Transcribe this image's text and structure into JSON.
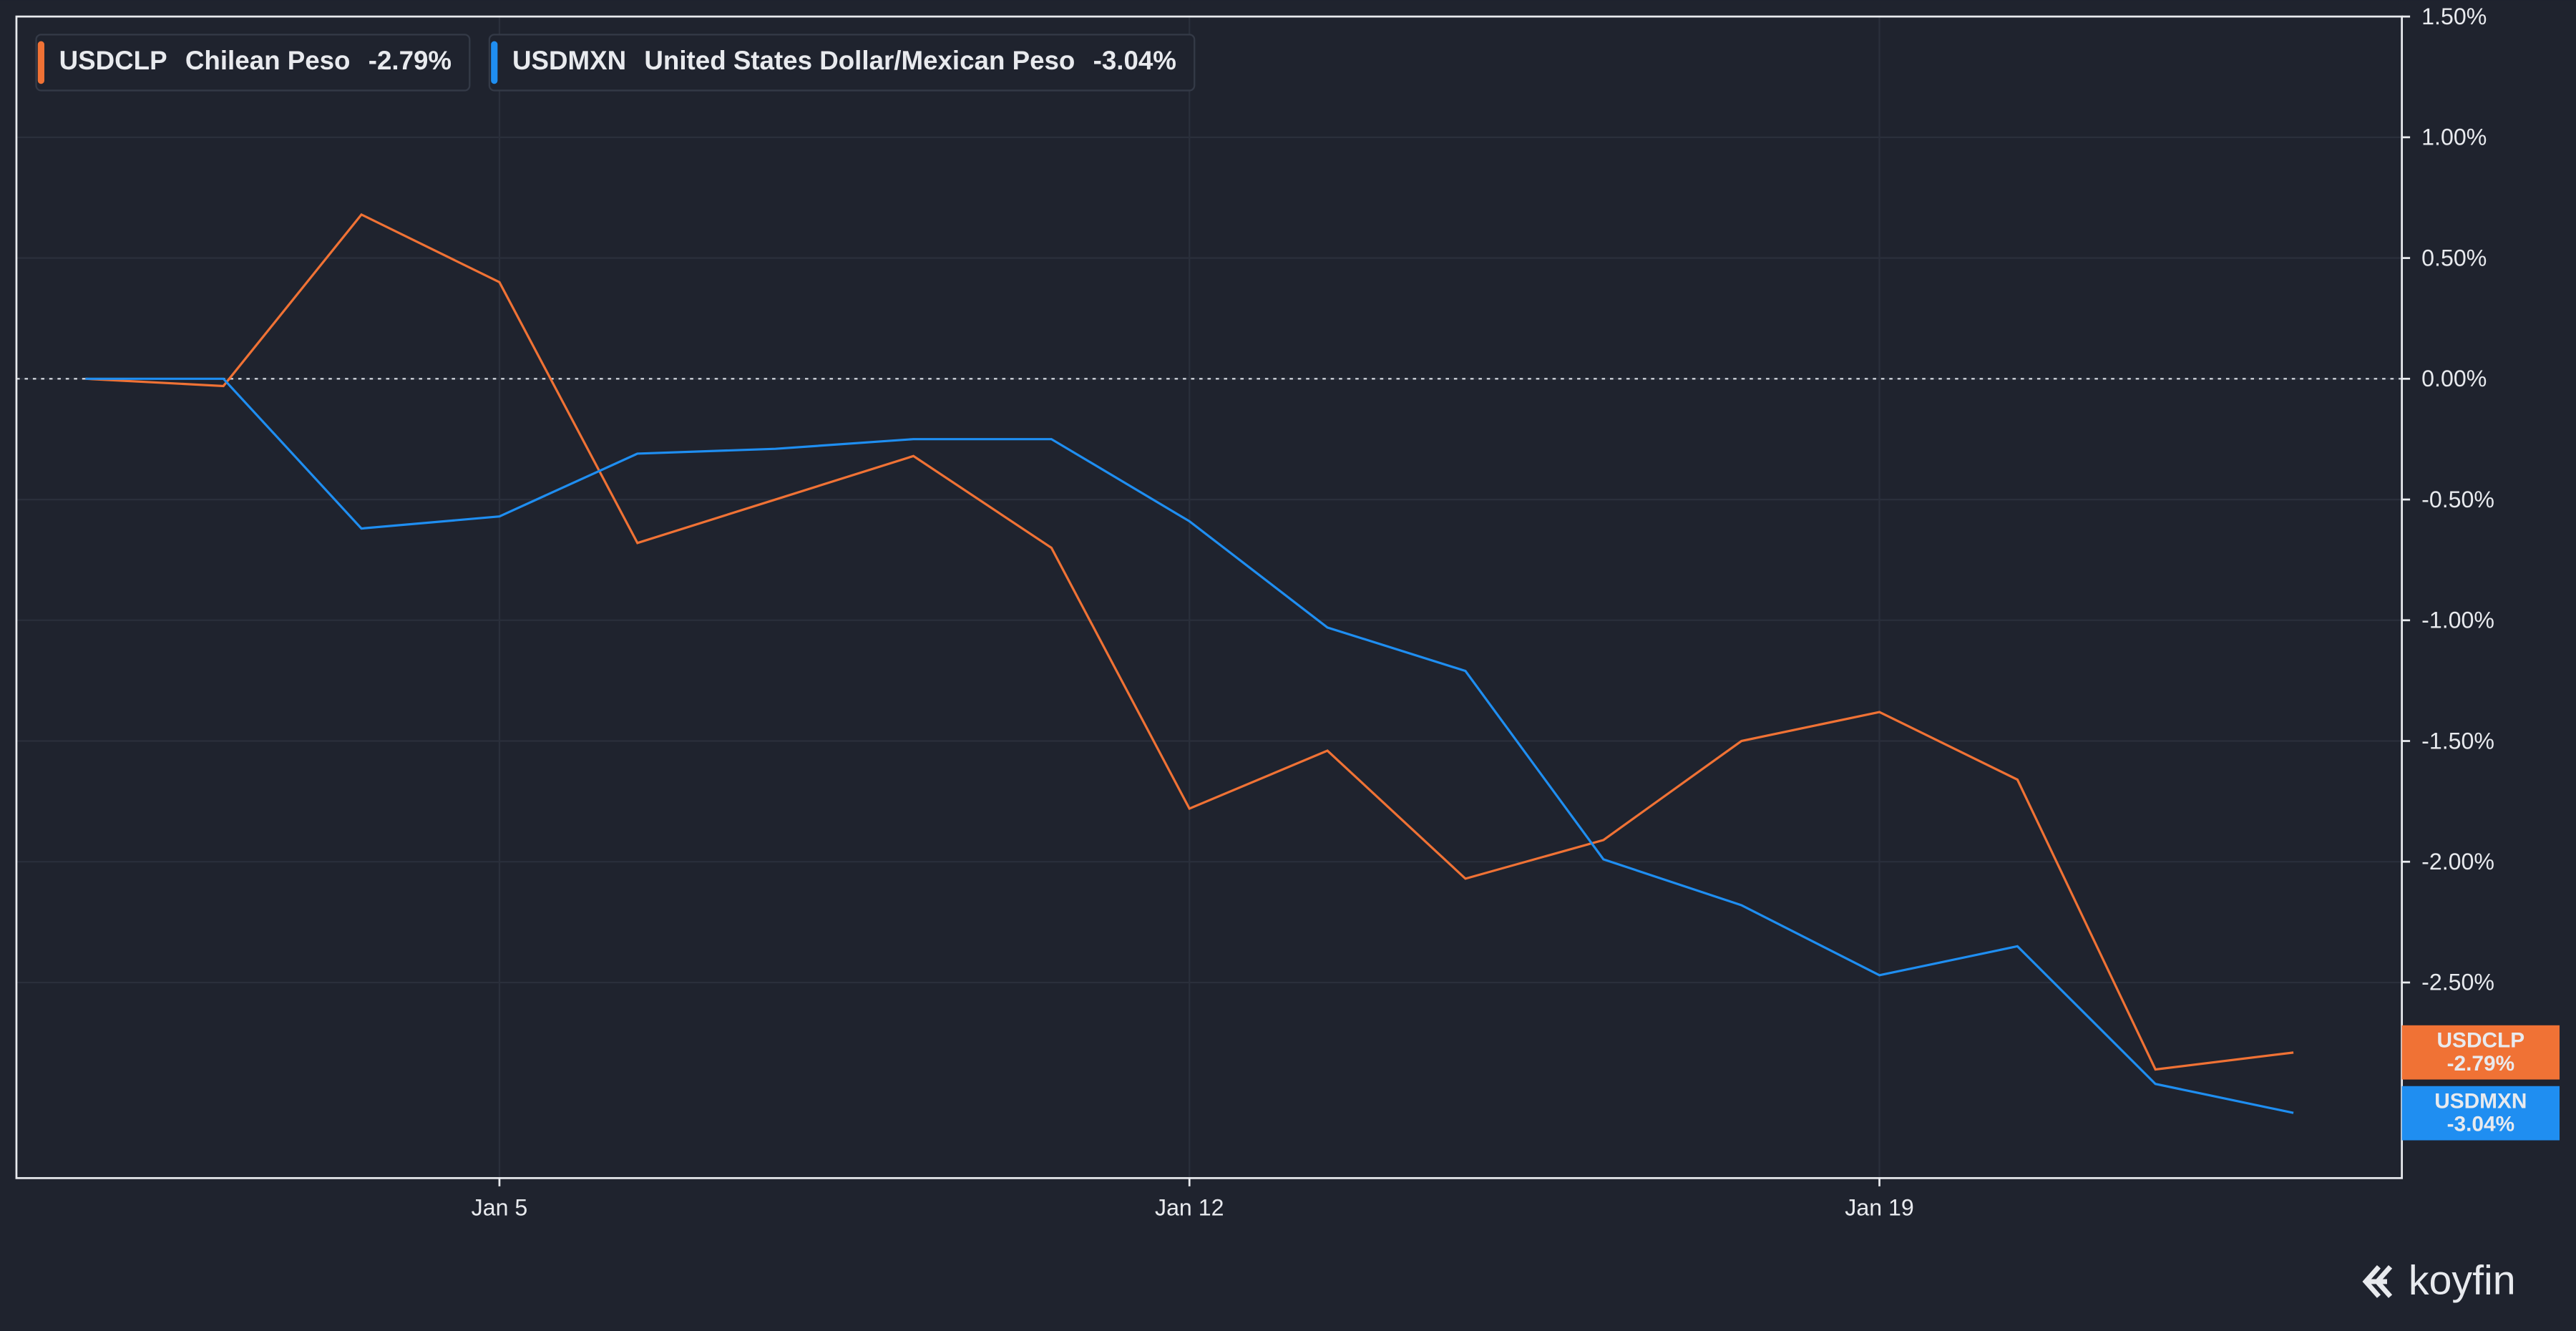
{
  "chart_data": {
    "type": "line",
    "categories": [
      null,
      null,
      null,
      "Jan 5",
      null,
      null,
      null,
      null,
      "Jan 12",
      null,
      null,
      null,
      null,
      "Jan 19",
      null,
      null,
      null
    ],
    "series": [
      {
        "name": "USDCLP",
        "description": "Chilean Peso",
        "last_label": "-2.79%",
        "color": "#f07235",
        "values": [
          0.0,
          -0.03,
          0.68,
          0.4,
          -0.68,
          -0.5,
          -0.32,
          -0.7,
          -1.78,
          -1.54,
          -2.07,
          -1.91,
          -1.5,
          -1.38,
          -1.66,
          -2.86,
          -2.79
        ]
      },
      {
        "name": "USDMXN",
        "description": "United States Dollar/Mexican Peso",
        "last_label": "-3.04%",
        "color": "#1f8ef1",
        "values": [
          0.0,
          0.0,
          -0.62,
          -0.57,
          -0.31,
          -0.29,
          -0.25,
          -0.25,
          -0.59,
          -1.03,
          -1.21,
          -1.99,
          -2.18,
          -2.47,
          -2.35,
          -2.92,
          -3.04
        ]
      }
    ],
    "ylim": [
      -3.31,
      1.5
    ],
    "yticks": [
      {
        "value": -2.5,
        "label": "-2.50%"
      },
      {
        "value": -2.0,
        "label": "-2.00%"
      },
      {
        "value": -1.5,
        "label": "-1.50%"
      },
      {
        "value": -1.0,
        "label": "-1.00%"
      },
      {
        "value": -0.5,
        "label": "-0.50%"
      },
      {
        "value": 0.0,
        "label": "0.00%"
      },
      {
        "value": 0.5,
        "label": "0.50%"
      },
      {
        "value": 1.0,
        "label": "1.00%"
      },
      {
        "value": 1.5,
        "label": "1.50%"
      }
    ],
    "grid": true,
    "zero_line": true,
    "legend": "top-left",
    "brand": "koyfin"
  }
}
